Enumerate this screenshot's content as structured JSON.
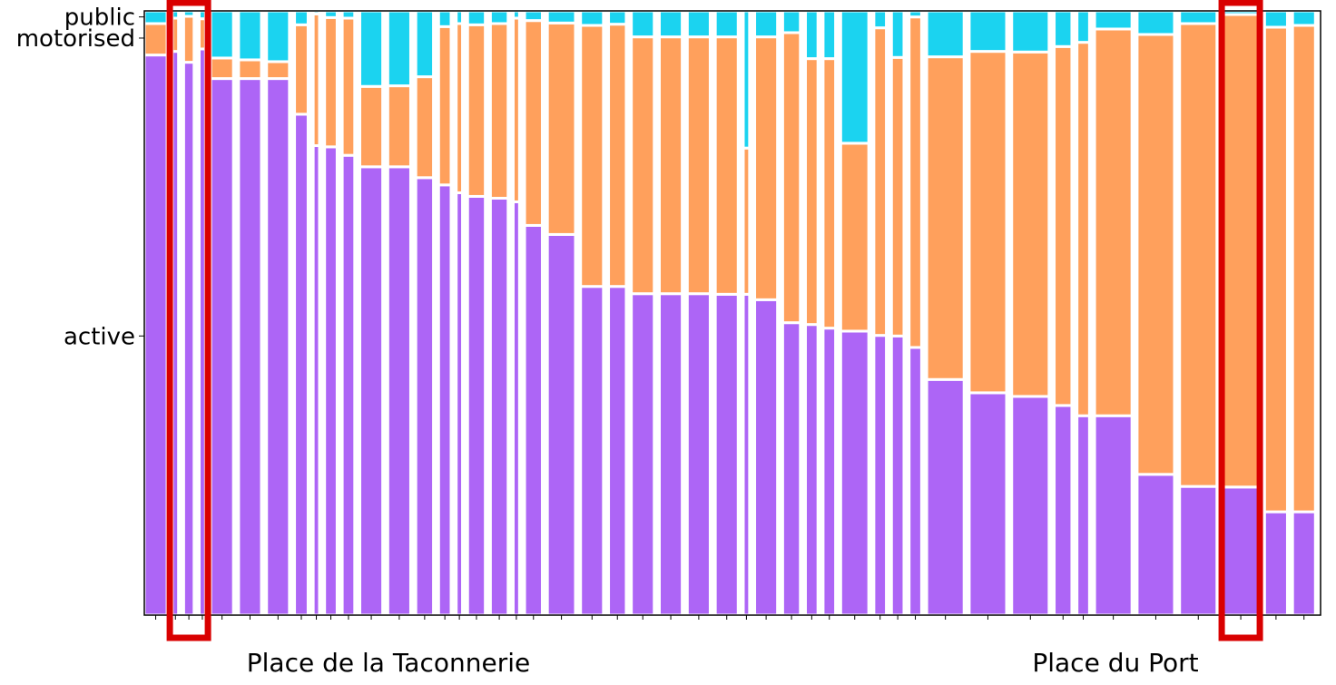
{
  "chart_data": {
    "type": "bar",
    "stacked": true,
    "normalized": true,
    "grid": false,
    "legend": "none",
    "yticks": [
      {
        "label": "public",
        "value": 0.99
      },
      {
        "label": "motorised",
        "value": 0.955
      },
      {
        "label": "active",
        "value": 0.462
      }
    ],
    "ylim": [
      0,
      1
    ],
    "series": [
      {
        "name": "active",
        "color": "#ad65f6"
      },
      {
        "name": "motorised",
        "color": "#ffa05c"
      },
      {
        "name": "public",
        "color": "#1bd3f0"
      }
    ],
    "bars": [
      {
        "w": 22,
        "active": 0.927,
        "motorised": 0.052,
        "public": 0.021
      },
      {
        "w": 6,
        "active": 0.933,
        "motorised": 0.055,
        "public": 0.012
      },
      {
        "w": 10,
        "active": 0.915,
        "motorised": 0.076,
        "public": 0.009
      },
      {
        "w": 6,
        "active": 0.937,
        "motorised": 0.05,
        "public": 0.013
      },
      {
        "w": 22,
        "active": 0.888,
        "motorised": 0.034,
        "public": 0.078
      },
      {
        "w": 22,
        "active": 0.888,
        "motorised": 0.031,
        "public": 0.081
      },
      {
        "w": 22,
        "active": 0.888,
        "motorised": 0.028,
        "public": 0.084
      },
      {
        "w": 13,
        "active": 0.829,
        "motorised": 0.148,
        "public": 0.023
      },
      {
        "w": 6,
        "active": 0.777,
        "motorised": 0.218,
        "public": 0.005
      },
      {
        "w": 12,
        "active": 0.775,
        "motorised": 0.214,
        "public": 0.011
      },
      {
        "w": 12,
        "active": 0.761,
        "motorised": 0.227,
        "public": 0.012
      },
      {
        "w": 22,
        "active": 0.742,
        "motorised": 0.133,
        "public": 0.125
      },
      {
        "w": 22,
        "active": 0.742,
        "motorised": 0.134,
        "public": 0.124
      },
      {
        "w": 17,
        "active": 0.724,
        "motorised": 0.167,
        "public": 0.109
      },
      {
        "w": 12,
        "active": 0.712,
        "motorised": 0.262,
        "public": 0.026
      },
      {
        "w": 6,
        "active": 0.699,
        "motorised": 0.28,
        "public": 0.021
      },
      {
        "w": 17,
        "active": 0.693,
        "motorised": 0.284,
        "public": 0.023
      },
      {
        "w": 17,
        "active": 0.69,
        "motorised": 0.289,
        "public": 0.021
      },
      {
        "w": 6,
        "active": 0.684,
        "motorised": 0.304,
        "public": 0.012
      },
      {
        "w": 17,
        "active": 0.645,
        "motorised": 0.339,
        "public": 0.016
      },
      {
        "w": 27,
        "active": 0.63,
        "motorised": 0.35,
        "public": 0.02
      },
      {
        "w": 22,
        "active": 0.544,
        "motorised": 0.432,
        "public": 0.024
      },
      {
        "w": 17,
        "active": 0.544,
        "motorised": 0.434,
        "public": 0.022
      },
      {
        "w": 22,
        "active": 0.532,
        "motorised": 0.425,
        "public": 0.043
      },
      {
        "w": 22,
        "active": 0.532,
        "motorised": 0.425,
        "public": 0.043
      },
      {
        "w": 22,
        "active": 0.532,
        "motorised": 0.425,
        "public": 0.043
      },
      {
        "w": 22,
        "active": 0.531,
        "motorised": 0.426,
        "public": 0.043
      },
      {
        "w": 6,
        "active": 0.531,
        "motorised": 0.242,
        "public": 0.227
      },
      {
        "w": 22,
        "active": 0.522,
        "motorised": 0.435,
        "public": 0.043
      },
      {
        "w": 17,
        "active": 0.484,
        "motorised": 0.48,
        "public": 0.036
      },
      {
        "w": 12,
        "active": 0.481,
        "motorised": 0.44,
        "public": 0.079
      },
      {
        "w": 12,
        "active": 0.475,
        "motorised": 0.446,
        "public": 0.079
      },
      {
        "w": 27,
        "active": 0.47,
        "motorised": 0.311,
        "public": 0.219
      },
      {
        "w": 12,
        "active": 0.463,
        "motorised": 0.509,
        "public": 0.028
      },
      {
        "w": 12,
        "active": 0.462,
        "motorised": 0.461,
        "public": 0.077
      },
      {
        "w": 12,
        "active": 0.443,
        "motorised": 0.547,
        "public": 0.01
      },
      {
        "w": 36,
        "active": 0.39,
        "motorised": 0.534,
        "public": 0.076
      },
      {
        "w": 36,
        "active": 0.368,
        "motorised": 0.565,
        "public": 0.067
      },
      {
        "w": 36,
        "active": 0.362,
        "motorised": 0.57,
        "public": 0.068
      },
      {
        "w": 17,
        "active": 0.347,
        "motorised": 0.594,
        "public": 0.059
      },
      {
        "w": 12,
        "active": 0.33,
        "motorised": 0.618,
        "public": 0.052
      },
      {
        "w": 36,
        "active": 0.33,
        "motorised": 0.64,
        "public": 0.03
      },
      {
        "w": 36,
        "active": 0.233,
        "motorised": 0.728,
        "public": 0.039
      },
      {
        "w": 36,
        "active": 0.213,
        "motorised": 0.766,
        "public": 0.021
      },
      {
        "w": 36,
        "active": 0.212,
        "motorised": 0.782,
        "public": 0.006
      },
      {
        "w": 22,
        "active": 0.171,
        "motorised": 0.802,
        "public": 0.027
      },
      {
        "w": 22,
        "active": 0.171,
        "motorised": 0.805,
        "public": 0.024
      }
    ],
    "annotations": [
      {
        "text": "Place de la Taconnerie",
        "bar_index": 2
      },
      {
        "text": "Place du Port",
        "bar_index": 44
      }
    ],
    "highlight_color": "#d90000"
  }
}
